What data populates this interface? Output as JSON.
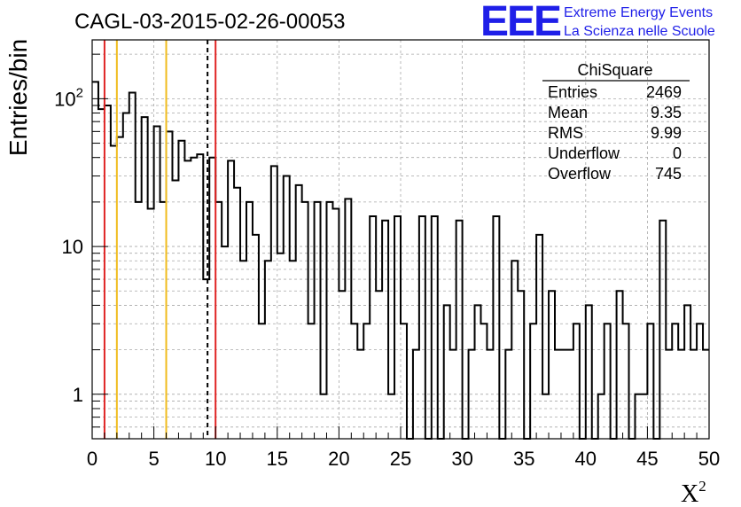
{
  "chart_data": {
    "type": "histogram",
    "title": "CAGL-03-2015-02-26-00053",
    "xlabel": "X",
    "xlabel_sup": "2",
    "ylabel": "Entries/bin",
    "xlim": [
      0,
      50
    ],
    "ylog": true,
    "ylim": [
      0.5,
      250
    ],
    "grid": true,
    "bin_width": 0.5,
    "x_ticks": [
      "0",
      "5",
      "10",
      "15",
      "20",
      "25",
      "30",
      "35",
      "40",
      "45",
      "50"
    ],
    "x_tick_values": [
      0,
      5,
      10,
      15,
      20,
      25,
      30,
      35,
      40,
      45,
      50
    ],
    "y_ticks": [
      "1",
      "10",
      "10"
    ],
    "y_tick_sup": [
      "",
      "",
      "2"
    ],
    "y_tick_values": [
      1,
      10,
      100
    ],
    "values": [
      130,
      85,
      90,
      48,
      55,
      80,
      110,
      20,
      75,
      18,
      65,
      20,
      60,
      28,
      52,
      38,
      40,
      42,
      6,
      40,
      20,
      10,
      38,
      25,
      8,
      20,
      12,
      3,
      8,
      35,
      9,
      30,
      8,
      26,
      20,
      3,
      20,
      1,
      20,
      18,
      5,
      21,
      3,
      2,
      3,
      16,
      5,
      15,
      1,
      16,
      3,
      0,
      2,
      16,
      0,
      16,
      0,
      4,
      2,
      15,
      0,
      2,
      4,
      3,
      2,
      16,
      0,
      2,
      8,
      5,
      0,
      3,
      12,
      1,
      5,
      2,
      2,
      2,
      3,
      0,
      4,
      0,
      1,
      3,
      0,
      5,
      3,
      0,
      1,
      1,
      3,
      0,
      15,
      2,
      3,
      2,
      4,
      2,
      3,
      2
    ],
    "vlines": [
      {
        "x": 1,
        "color": "#e02424",
        "style": "solid"
      },
      {
        "x": 2,
        "color": "#f0bc1e",
        "style": "solid"
      },
      {
        "x": 6,
        "color": "#f0bc1e",
        "style": "solid"
      },
      {
        "x": 9.35,
        "color": "#000000",
        "style": "dashed"
      },
      {
        "x": 10,
        "color": "#e02424",
        "style": "solid"
      }
    ],
    "stats": {
      "title": "ChiSquare",
      "rows": [
        {
          "label": "Entries",
          "value": "2469"
        },
        {
          "label": "Mean",
          "value": "9.35"
        },
        {
          "label": "RMS",
          "value": "9.99"
        },
        {
          "label": "Underflow",
          "value": "0"
        },
        {
          "label": "Overflow",
          "value": "745"
        }
      ]
    }
  },
  "logo": {
    "text": "EEE",
    "line1": "Extreme Energy Events",
    "line2": "La Scienza nelle Scuole",
    "color": "#1f1fe8"
  }
}
